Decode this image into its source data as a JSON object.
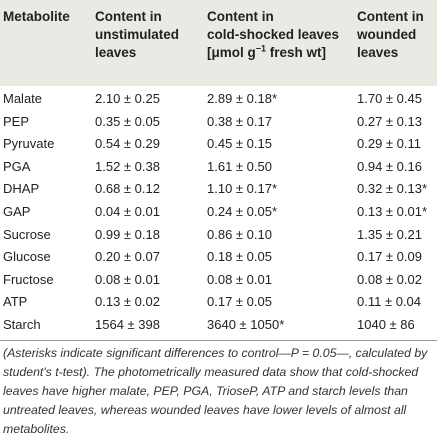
{
  "table": {
    "header": {
      "metabolite": "Metabolite",
      "unstimulated": [
        "Content in",
        "unstimulated",
        "leaves"
      ],
      "cold": [
        "Content in",
        "cold-shocked leaves",
        "[μmol g",
        "−1",
        " fresh wt]"
      ],
      "wounded": [
        "Content in",
        "wounded",
        "leaves"
      ]
    },
    "rows": [
      [
        "Malate",
        "2.10 ± 0.25",
        "2.89 ± 0.18*",
        "1.70 ± 0.45"
      ],
      [
        "PEP",
        "0.35 ± 0.05",
        "0.38 ± 0.17",
        "0.27 ± 0.13"
      ],
      [
        "Pyruvate",
        "0.54 ± 0.29",
        "0.45 ± 0.15",
        "0.29 ± 0.11"
      ],
      [
        "PGA",
        "1.52 ± 0.38",
        "1.61 ± 0.50",
        "0.94 ± 0.16"
      ],
      [
        "DHAP",
        "0.68 ± 0.12",
        "1.10 ± 0.17*",
        "0.32 ± 0.13*"
      ],
      [
        "GAP",
        "0.04 ± 0.01",
        "0.24 ± 0.05*",
        "0.13 ± 0.01*"
      ],
      [
        "Sucrose",
        "0.99 ± 0.18",
        "0.86 ± 0.10",
        "1.35 ± 0.21"
      ],
      [
        "Glucose",
        "0.20 ± 0.07",
        "0.18 ± 0.05",
        "0.17 ± 0.09"
      ],
      [
        "Fructose",
        "0.08 ± 0.01",
        "0.08 ± 0.01",
        "0.08 ± 0.02"
      ],
      [
        "ATP",
        "0.13 ± 0.02",
        "0.17 ± 0.05",
        "0.11 ± 0.04"
      ],
      [
        "Starch",
        "1564 ± 398",
        "3640 ± 1050*",
        "1040 ± 86"
      ]
    ],
    "footnote": "(Asterisks indicate significant differences to control—P = 0.05—, calculated by student's t-test). The photometrically measured data show that cold-shocked leaves have higher malate, PEP, PGA, TrioseP, ATP and starch levels than untreated leaves, whereas wounded leaves have lower levels of almost all metabolites."
  }
}
